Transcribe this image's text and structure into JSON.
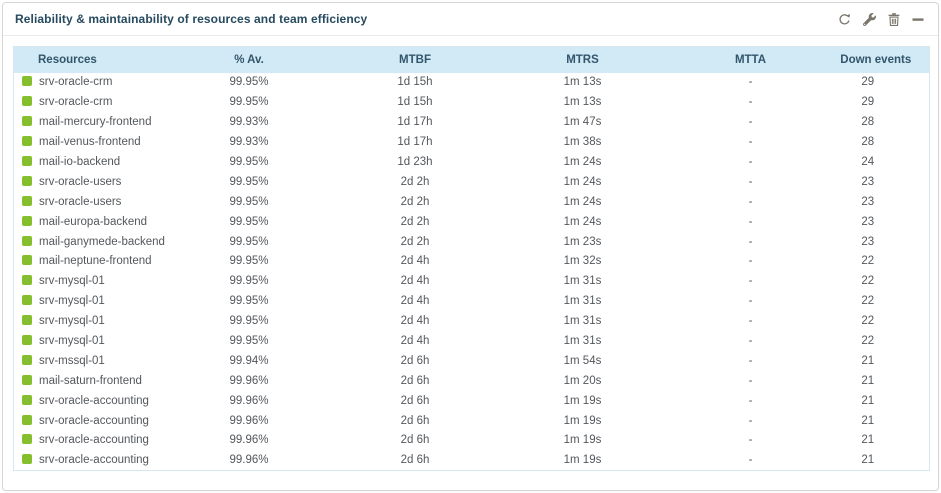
{
  "widget": {
    "title": "Reliability & maintainability of resources and team efficiency",
    "controls": {
      "refresh_label": "Refresh",
      "edit_label": "Edit",
      "delete_label": "Delete",
      "collapse_label": "Collapse"
    }
  },
  "colors": {
    "status_ok": "#86bf2e",
    "header_bg": "#d2e9f6",
    "header_text": "#32566c",
    "title_text": "#264a5f",
    "body_text": "#53575c",
    "icon_gray": "#7a756b",
    "table_border": "#d7e7f0"
  },
  "table": {
    "columns": [
      "Resources",
      "% Av.",
      "MTBF",
      "MTRS",
      "MTTA",
      "Down events"
    ],
    "rows": [
      {
        "resource": "srv-oracle-crm",
        "availability": "99.95%",
        "mtbf": "1d 15h",
        "mtrs": "1m 13s",
        "mtta": "-",
        "down_events": "29"
      },
      {
        "resource": "srv-oracle-crm",
        "availability": "99.95%",
        "mtbf": "1d 15h",
        "mtrs": "1m 13s",
        "mtta": "-",
        "down_events": "29"
      },
      {
        "resource": "mail-mercury-frontend",
        "availability": "99.93%",
        "mtbf": "1d 17h",
        "mtrs": "1m 47s",
        "mtta": "-",
        "down_events": "28"
      },
      {
        "resource": "mail-venus-frontend",
        "availability": "99.93%",
        "mtbf": "1d 17h",
        "mtrs": "1m 38s",
        "mtta": "-",
        "down_events": "28"
      },
      {
        "resource": "mail-io-backend",
        "availability": "99.95%",
        "mtbf": "1d 23h",
        "mtrs": "1m 24s",
        "mtta": "-",
        "down_events": "24"
      },
      {
        "resource": "srv-oracle-users",
        "availability": "99.95%",
        "mtbf": "2d 2h",
        "mtrs": "1m 24s",
        "mtta": "-",
        "down_events": "23"
      },
      {
        "resource": "srv-oracle-users",
        "availability": "99.95%",
        "mtbf": "2d 2h",
        "mtrs": "1m 24s",
        "mtta": "-",
        "down_events": "23"
      },
      {
        "resource": "mail-europa-backend",
        "availability": "99.95%",
        "mtbf": "2d 2h",
        "mtrs": "1m 24s",
        "mtta": "-",
        "down_events": "23"
      },
      {
        "resource": "mail-ganymede-backend",
        "availability": "99.95%",
        "mtbf": "2d 2h",
        "mtrs": "1m 23s",
        "mtta": "-",
        "down_events": "23"
      },
      {
        "resource": "mail-neptune-frontend",
        "availability": "99.95%",
        "mtbf": "2d 4h",
        "mtrs": "1m 32s",
        "mtta": "-",
        "down_events": "22"
      },
      {
        "resource": "srv-mysql-01",
        "availability": "99.95%",
        "mtbf": "2d 4h",
        "mtrs": "1m 31s",
        "mtta": "-",
        "down_events": "22"
      },
      {
        "resource": "srv-mysql-01",
        "availability": "99.95%",
        "mtbf": "2d 4h",
        "mtrs": "1m 31s",
        "mtta": "-",
        "down_events": "22"
      },
      {
        "resource": "srv-mysql-01",
        "availability": "99.95%",
        "mtbf": "2d 4h",
        "mtrs": "1m 31s",
        "mtta": "-",
        "down_events": "22"
      },
      {
        "resource": "srv-mysql-01",
        "availability": "99.95%",
        "mtbf": "2d 4h",
        "mtrs": "1m 31s",
        "mtta": "-",
        "down_events": "22"
      },
      {
        "resource": "srv-mssql-01",
        "availability": "99.94%",
        "mtbf": "2d 6h",
        "mtrs": "1m 54s",
        "mtta": "-",
        "down_events": "21"
      },
      {
        "resource": "mail-saturn-frontend",
        "availability": "99.96%",
        "mtbf": "2d 6h",
        "mtrs": "1m 20s",
        "mtta": "-",
        "down_events": "21"
      },
      {
        "resource": "srv-oracle-accounting",
        "availability": "99.96%",
        "mtbf": "2d 6h",
        "mtrs": "1m 19s",
        "mtta": "-",
        "down_events": "21"
      },
      {
        "resource": "srv-oracle-accounting",
        "availability": "99.96%",
        "mtbf": "2d 6h",
        "mtrs": "1m 19s",
        "mtta": "-",
        "down_events": "21"
      },
      {
        "resource": "srv-oracle-accounting",
        "availability": "99.96%",
        "mtbf": "2d 6h",
        "mtrs": "1m 19s",
        "mtta": "-",
        "down_events": "21"
      },
      {
        "resource": "srv-oracle-accounting",
        "availability": "99.96%",
        "mtbf": "2d 6h",
        "mtrs": "1m 19s",
        "mtta": "-",
        "down_events": "21"
      }
    ]
  }
}
